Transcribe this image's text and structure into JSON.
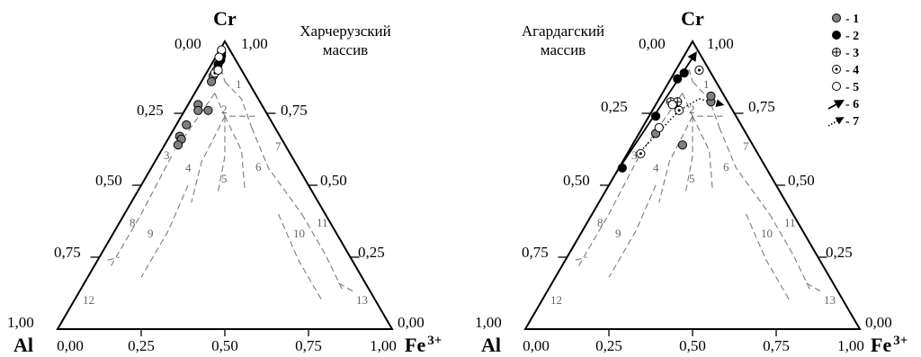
{
  "chart_data": [
    {
      "type": "scatter",
      "subtype": "ternary",
      "title": "Харчерузский массив",
      "vertices": {
        "top": "Cr",
        "left": "Al",
        "right": "Fe",
        "right_sup": "3+"
      },
      "tick_labels": [
        "0,00",
        "0,25",
        "0,50",
        "0,75",
        "1,00"
      ],
      "field_labels": [
        "1",
        "2",
        "3",
        "4",
        "5",
        "6",
        "7",
        "8",
        "9",
        "10",
        "11",
        "12",
        "13"
      ],
      "components": [
        "Cr",
        "Al",
        "Fe3+"
      ],
      "series": [
        {
          "legend": "1",
          "points": [
            [
              0.88,
              0.095,
              0.025
            ],
            [
              0.86,
              0.11,
              0.03
            ],
            [
              0.78,
              0.19,
              0.03
            ],
            [
              0.76,
              0.2,
              0.04
            ],
            [
              0.76,
              0.17,
              0.07
            ],
            [
              0.71,
              0.26,
              0.03
            ],
            [
              0.67,
              0.3,
              0.03
            ],
            [
              0.66,
              0.3,
              0.04
            ],
            [
              0.64,
              0.32,
              0.04
            ]
          ]
        },
        {
          "legend": "2",
          "points": [
            [
              0.96,
              0.03,
              0.01
            ],
            [
              0.95,
              0.035,
              0.015
            ],
            [
              0.935,
              0.045,
              0.02
            ],
            [
              0.92,
              0.06,
              0.02
            ]
          ]
        },
        {
          "legend": "4",
          "points": [
            [
              0.9,
              0.075,
              0.025
            ],
            [
              0.89,
              0.085,
              0.025
            ]
          ]
        },
        {
          "legend": "5",
          "points": [
            [
              0.97,
              0.025,
              0.005
            ],
            [
              0.945,
              0.045,
              0.01
            ],
            [
              0.9,
              0.07,
              0.03
            ]
          ]
        }
      ]
    },
    {
      "type": "scatter",
      "subtype": "ternary",
      "title": "Агардагский массив",
      "vertices": {
        "top": "Cr",
        "left": "Al",
        "right": "Fe",
        "right_sup": "3+"
      },
      "tick_labels": [
        "0,00",
        "0,25",
        "0,50",
        "0,75",
        "1,00"
      ],
      "field_labels": [
        "1",
        "2",
        "3",
        "4",
        "5",
        "6",
        "7",
        "8",
        "9",
        "10",
        "11",
        "12",
        "13"
      ],
      "components": [
        "Cr",
        "Al",
        "Fe3+"
      ],
      "series": [
        {
          "legend": "1",
          "points": [
            [
              0.79,
              0.05,
              0.16
            ],
            [
              0.81,
              0.04,
              0.15
            ],
            [
              0.68,
              0.27,
              0.05
            ],
            [
              0.64,
              0.21,
              0.15
            ]
          ]
        },
        {
          "legend": "2",
          "points": [
            [
              0.89,
              0.08,
              0.03
            ],
            [
              0.87,
              0.11,
              0.02
            ],
            [
              0.74,
              0.24,
              0.02
            ],
            [
              0.56,
              0.43,
              0.01
            ]
          ]
        },
        {
          "legend": "3",
          "points": [
            [
              0.79,
              0.17,
              0.04
            ],
            [
              0.79,
              0.15,
              0.06
            ]
          ]
        },
        {
          "legend": "4",
          "points": [
            [
              0.9,
              0.03,
              0.07
            ],
            [
              0.76,
              0.16,
              0.08
            ],
            [
              0.61,
              0.35,
              0.04
            ]
          ]
        },
        {
          "legend": "5",
          "points": [
            [
              0.78,
              0.17,
              0.05
            ],
            [
              0.7,
              0.25,
              0.05
            ]
          ]
        }
      ],
      "trends": [
        {
          "legend": "6",
          "style": "solid",
          "points": [
            [
              0.54,
              0.46,
              0.0
            ],
            [
              0.96,
              0.01,
              0.03
            ]
          ]
        },
        {
          "legend": "7",
          "style": "dotted",
          "points": [
            [
              0.6,
              0.37,
              0.03
            ],
            [
              0.76,
              0.16,
              0.08
            ],
            [
              0.8,
              0.08,
              0.12
            ],
            [
              0.78,
              0.02,
              0.2
            ]
          ]
        }
      ]
    }
  ],
  "legend": {
    "items": [
      {
        "marker": "gray-circle",
        "label": "- 1"
      },
      {
        "marker": "black-circle",
        "label": "- 2"
      },
      {
        "marker": "crossed-circle",
        "label": "- 3"
      },
      {
        "marker": "dotted-circle",
        "label": "- 4"
      },
      {
        "marker": "open-circle",
        "label": "- 5"
      },
      {
        "marker": "solid-arrow",
        "label": "- 6"
      },
      {
        "marker": "dotted-arrow",
        "label": "- 7"
      }
    ]
  },
  "colors": {
    "gray_marker": "#808080",
    "black_marker": "#000000",
    "field_lines": "#7a7a7a",
    "field_text": "#666666"
  }
}
